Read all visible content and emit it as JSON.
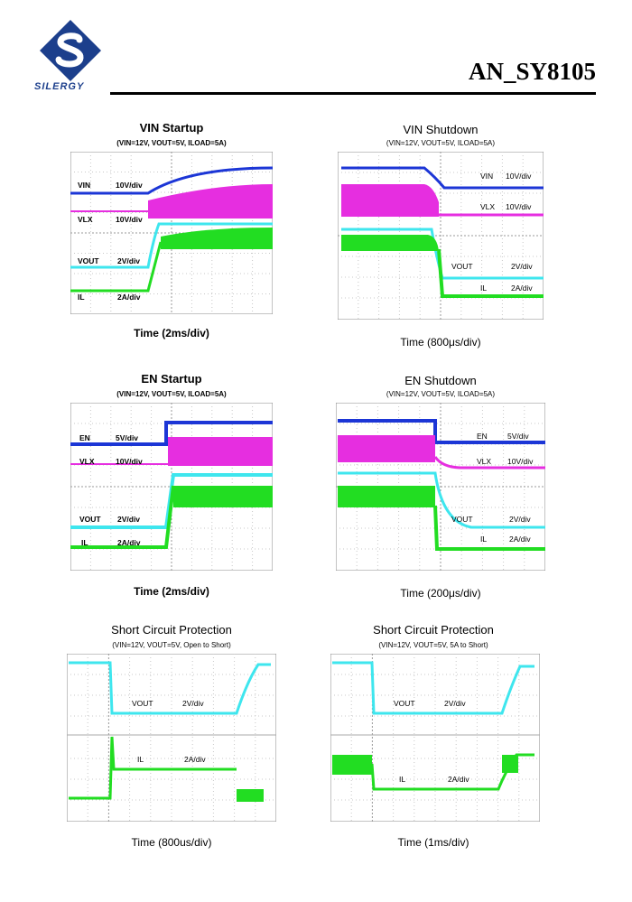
{
  "header": {
    "logo_text": "SILERGY",
    "doc_id": "AN_SY8105"
  },
  "colors": {
    "vin": "#1c36d6",
    "vlx": "#e62ee0",
    "vout": "#3ee6ee",
    "il": "#22dd22",
    "en": "#1c36d6",
    "logo": "#1c3f8c"
  },
  "panels": {
    "vin_startup": {
      "title": "VIN Startup",
      "conditions": "(VIN=12V, VOUT=5V, ILOAD=5A)",
      "time": "Time (2ms/div)",
      "traces": [
        {
          "name": "VIN",
          "scale": "10V/div"
        },
        {
          "name": "VLX",
          "scale": "10V/div"
        },
        {
          "name": "VOUT",
          "scale": "2V/div"
        },
        {
          "name": "IL",
          "scale": "2A/div"
        }
      ]
    },
    "vin_shutdown": {
      "title": "VIN Shutdown",
      "conditions": "(VIN=12V, VOUT=5V, ILOAD=5A)",
      "time": "Time (800μs/div)",
      "traces": [
        {
          "name": "VIN",
          "scale": "10V/div"
        },
        {
          "name": "VLX",
          "scale": "10V/div"
        },
        {
          "name": "VOUT",
          "scale": "2V/div"
        },
        {
          "name": "IL",
          "scale": "2A/div"
        }
      ]
    },
    "en_startup": {
      "title": "EN Startup",
      "conditions": "(VIN=12V, VOUT=5V, ILOAD=5A)",
      "time": "Time (2ms/div)",
      "traces": [
        {
          "name": "EN",
          "scale": "5V/div"
        },
        {
          "name": "VLX",
          "scale": "10V/div"
        },
        {
          "name": "VOUT",
          "scale": "2V/div"
        },
        {
          "name": "IL",
          "scale": "2A/div"
        }
      ]
    },
    "en_shutdown": {
      "title": "EN Shutdown",
      "conditions": "(VIN=12V, VOUT=5V, ILOAD=5A)",
      "time": "Time (200μs/div)",
      "traces": [
        {
          "name": "EN",
          "scale": "5V/div"
        },
        {
          "name": "VLX",
          "scale": "10V/div"
        },
        {
          "name": "VOUT",
          "scale": "2V/div"
        },
        {
          "name": "IL",
          "scale": "2A/div"
        }
      ]
    },
    "scp_open": {
      "title": "Short Circuit Protection",
      "conditions": "(VIN=12V, VOUT=5V, Open to Short)",
      "time": "Time (800us/div)",
      "traces": [
        {
          "name": "VOUT",
          "scale": "2V/div"
        },
        {
          "name": "IL",
          "scale": "2A/div"
        }
      ]
    },
    "scp_load": {
      "title": "Short Circuit Protection",
      "conditions": "(VIN=12V, VOUT=5V, 5A to Short)",
      "time": "Time (1ms/div)",
      "traces": [
        {
          "name": "VOUT",
          "scale": "2V/div"
        },
        {
          "name": "IL",
          "scale": "2A/div"
        }
      ]
    }
  }
}
